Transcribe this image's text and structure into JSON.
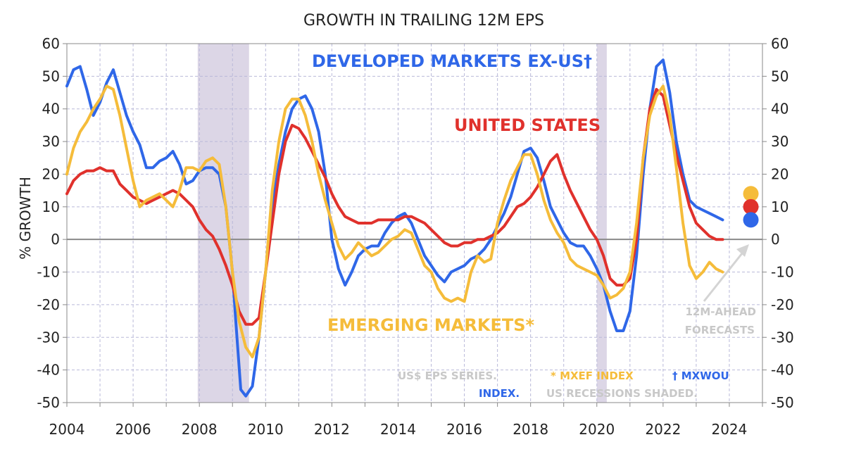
{
  "chart_data": {
    "type": "line",
    "title": "GROWTH IN TRAILING 12M EPS",
    "ylabel": "% GROWTH",
    "xlim": [
      2004,
      2025
    ],
    "ylim": [
      -50,
      60
    ],
    "x_ticks": [
      "2004",
      "2006",
      "2008",
      "2010",
      "2012",
      "2014",
      "2016",
      "2018",
      "2020",
      "2022",
      "2024"
    ],
    "y_ticks": [
      "60",
      "50",
      "40",
      "30",
      "20",
      "10",
      "0",
      "-10",
      "-20",
      "-30",
      "-40",
      "-50"
    ],
    "grid": true,
    "recessions": [
      [
        2007.95,
        2009.5
      ],
      [
        2020.0,
        2020.3
      ]
    ],
    "series": [
      {
        "name": "DEVELOPED MARKETS EX-US†",
        "color": "#2f67e8",
        "points": [
          [
            2004.0,
            47
          ],
          [
            2004.2,
            52
          ],
          [
            2004.4,
            53
          ],
          [
            2004.6,
            46
          ],
          [
            2004.8,
            38
          ],
          [
            2005.0,
            42
          ],
          [
            2005.2,
            48
          ],
          [
            2005.4,
            52
          ],
          [
            2005.6,
            45
          ],
          [
            2005.8,
            38
          ],
          [
            2006.0,
            33
          ],
          [
            2006.2,
            29
          ],
          [
            2006.4,
            22
          ],
          [
            2006.6,
            22
          ],
          [
            2006.8,
            24
          ],
          [
            2007.0,
            25
          ],
          [
            2007.2,
            27
          ],
          [
            2007.4,
            23
          ],
          [
            2007.6,
            17
          ],
          [
            2007.8,
            18
          ],
          [
            2008.0,
            21
          ],
          [
            2008.2,
            22
          ],
          [
            2008.4,
            22
          ],
          [
            2008.6,
            20
          ],
          [
            2008.8,
            10
          ],
          [
            2009.0,
            -10
          ],
          [
            2009.1,
            -25
          ],
          [
            2009.25,
            -46
          ],
          [
            2009.4,
            -48
          ],
          [
            2009.6,
            -45
          ],
          [
            2009.8,
            -30
          ],
          [
            2010.0,
            -10
          ],
          [
            2010.2,
            10
          ],
          [
            2010.4,
            23
          ],
          [
            2010.6,
            33
          ],
          [
            2010.8,
            40
          ],
          [
            2011.0,
            43
          ],
          [
            2011.2,
            44
          ],
          [
            2011.4,
            40
          ],
          [
            2011.6,
            33
          ],
          [
            2011.8,
            20
          ],
          [
            2012.0,
            0
          ],
          [
            2012.2,
            -9
          ],
          [
            2012.4,
            -14
          ],
          [
            2012.6,
            -10
          ],
          [
            2012.8,
            -5
          ],
          [
            2013.0,
            -3
          ],
          [
            2013.2,
            -2
          ],
          [
            2013.4,
            -2
          ],
          [
            2013.6,
            2
          ],
          [
            2013.8,
            5
          ],
          [
            2014.0,
            7
          ],
          [
            2014.2,
            8
          ],
          [
            2014.4,
            5
          ],
          [
            2014.6,
            0
          ],
          [
            2014.8,
            -5
          ],
          [
            2015.0,
            -8
          ],
          [
            2015.2,
            -11
          ],
          [
            2015.4,
            -13
          ],
          [
            2015.6,
            -10
          ],
          [
            2015.8,
            -9
          ],
          [
            2016.0,
            -8
          ],
          [
            2016.2,
            -6
          ],
          [
            2016.4,
            -5
          ],
          [
            2016.6,
            -3
          ],
          [
            2016.8,
            0
          ],
          [
            2017.0,
            4
          ],
          [
            2017.2,
            8
          ],
          [
            2017.4,
            13
          ],
          [
            2017.6,
            20
          ],
          [
            2017.8,
            27
          ],
          [
            2018.0,
            28
          ],
          [
            2018.2,
            25
          ],
          [
            2018.4,
            18
          ],
          [
            2018.6,
            10
          ],
          [
            2018.8,
            6
          ],
          [
            2019.0,
            2
          ],
          [
            2019.2,
            -1
          ],
          [
            2019.4,
            -2
          ],
          [
            2019.6,
            -2
          ],
          [
            2019.8,
            -5
          ],
          [
            2020.0,
            -9
          ],
          [
            2020.2,
            -14
          ],
          [
            2020.4,
            -22
          ],
          [
            2020.6,
            -28
          ],
          [
            2020.8,
            -28
          ],
          [
            2021.0,
            -22
          ],
          [
            2021.2,
            -5
          ],
          [
            2021.4,
            20
          ],
          [
            2021.6,
            40
          ],
          [
            2021.8,
            53
          ],
          [
            2022.0,
            55
          ],
          [
            2022.2,
            45
          ],
          [
            2022.4,
            30
          ],
          [
            2022.6,
            20
          ],
          [
            2022.8,
            12
          ],
          [
            2023.0,
            10
          ],
          [
            2023.2,
            9
          ],
          [
            2023.4,
            8
          ],
          [
            2023.6,
            7
          ],
          [
            2023.8,
            6
          ]
        ]
      },
      {
        "name": "UNITED STATES",
        "color": "#e0312c",
        "points": [
          [
            2004.0,
            14
          ],
          [
            2004.2,
            18
          ],
          [
            2004.4,
            20
          ],
          [
            2004.6,
            21
          ],
          [
            2004.8,
            21
          ],
          [
            2005.0,
            22
          ],
          [
            2005.2,
            21
          ],
          [
            2005.4,
            21
          ],
          [
            2005.6,
            17
          ],
          [
            2005.8,
            15
          ],
          [
            2006.0,
            13
          ],
          [
            2006.2,
            12
          ],
          [
            2006.4,
            11
          ],
          [
            2006.6,
            12
          ],
          [
            2006.8,
            13
          ],
          [
            2007.0,
            14
          ],
          [
            2007.2,
            15
          ],
          [
            2007.4,
            14
          ],
          [
            2007.6,
            12
          ],
          [
            2007.8,
            10
          ],
          [
            2008.0,
            6
          ],
          [
            2008.2,
            3
          ],
          [
            2008.4,
            1
          ],
          [
            2008.6,
            -3
          ],
          [
            2008.8,
            -8
          ],
          [
            2009.0,
            -14
          ],
          [
            2009.2,
            -22
          ],
          [
            2009.4,
            -26
          ],
          [
            2009.6,
            -26
          ],
          [
            2009.8,
            -24
          ],
          [
            2010.0,
            -10
          ],
          [
            2010.2,
            5
          ],
          [
            2010.4,
            20
          ],
          [
            2010.6,
            30
          ],
          [
            2010.8,
            35
          ],
          [
            2011.0,
            34
          ],
          [
            2011.2,
            31
          ],
          [
            2011.4,
            27
          ],
          [
            2011.6,
            23
          ],
          [
            2011.8,
            19
          ],
          [
            2012.0,
            14
          ],
          [
            2012.2,
            10
          ],
          [
            2012.4,
            7
          ],
          [
            2012.6,
            6
          ],
          [
            2012.8,
            5
          ],
          [
            2013.0,
            5
          ],
          [
            2013.2,
            5
          ],
          [
            2013.4,
            6
          ],
          [
            2013.6,
            6
          ],
          [
            2013.8,
            6
          ],
          [
            2014.0,
            6
          ],
          [
            2014.2,
            7
          ],
          [
            2014.4,
            7
          ],
          [
            2014.6,
            6
          ],
          [
            2014.8,
            5
          ],
          [
            2015.0,
            3
          ],
          [
            2015.2,
            1
          ],
          [
            2015.4,
            -1
          ],
          [
            2015.6,
            -2
          ],
          [
            2015.8,
            -2
          ],
          [
            2016.0,
            -1
          ],
          [
            2016.2,
            -1
          ],
          [
            2016.4,
            0
          ],
          [
            2016.6,
            0
          ],
          [
            2016.8,
            1
          ],
          [
            2017.0,
            2
          ],
          [
            2017.2,
            4
          ],
          [
            2017.4,
            7
          ],
          [
            2017.6,
            10
          ],
          [
            2017.8,
            11
          ],
          [
            2018.0,
            13
          ],
          [
            2018.2,
            16
          ],
          [
            2018.4,
            20
          ],
          [
            2018.6,
            24
          ],
          [
            2018.8,
            26
          ],
          [
            2019.0,
            20
          ],
          [
            2019.2,
            15
          ],
          [
            2019.4,
            11
          ],
          [
            2019.6,
            7
          ],
          [
            2019.8,
            3
          ],
          [
            2020.0,
            0
          ],
          [
            2020.2,
            -5
          ],
          [
            2020.4,
            -12
          ],
          [
            2020.6,
            -14
          ],
          [
            2020.8,
            -14
          ],
          [
            2021.0,
            -12
          ],
          [
            2021.2,
            0
          ],
          [
            2021.4,
            25
          ],
          [
            2021.6,
            40
          ],
          [
            2021.8,
            46
          ],
          [
            2022.0,
            44
          ],
          [
            2022.2,
            35
          ],
          [
            2022.4,
            26
          ],
          [
            2022.6,
            18
          ],
          [
            2022.8,
            10
          ],
          [
            2023.0,
            5
          ],
          [
            2023.2,
            3
          ],
          [
            2023.4,
            1
          ],
          [
            2023.6,
            0
          ],
          [
            2023.8,
            0
          ]
        ]
      },
      {
        "name": "EMERGING MARKETS*",
        "color": "#f5bc3a",
        "points": [
          [
            2004.0,
            20
          ],
          [
            2004.2,
            28
          ],
          [
            2004.4,
            33
          ],
          [
            2004.6,
            36
          ],
          [
            2004.8,
            40
          ],
          [
            2005.0,
            43
          ],
          [
            2005.2,
            47
          ],
          [
            2005.4,
            46
          ],
          [
            2005.6,
            38
          ],
          [
            2005.8,
            28
          ],
          [
            2006.0,
            18
          ],
          [
            2006.2,
            10
          ],
          [
            2006.4,
            12
          ],
          [
            2006.6,
            13
          ],
          [
            2006.8,
            14
          ],
          [
            2007.0,
            12
          ],
          [
            2007.2,
            10
          ],
          [
            2007.4,
            15
          ],
          [
            2007.6,
            22
          ],
          [
            2007.8,
            22
          ],
          [
            2008.0,
            21
          ],
          [
            2008.2,
            24
          ],
          [
            2008.4,
            25
          ],
          [
            2008.6,
            23
          ],
          [
            2008.8,
            10
          ],
          [
            2009.0,
            -10
          ],
          [
            2009.2,
            -25
          ],
          [
            2009.4,
            -33
          ],
          [
            2009.6,
            -36
          ],
          [
            2009.8,
            -30
          ],
          [
            2010.0,
            -10
          ],
          [
            2010.2,
            15
          ],
          [
            2010.4,
            30
          ],
          [
            2010.6,
            40
          ],
          [
            2010.8,
            43
          ],
          [
            2011.0,
            43
          ],
          [
            2011.2,
            38
          ],
          [
            2011.4,
            30
          ],
          [
            2011.6,
            20
          ],
          [
            2011.8,
            12
          ],
          [
            2012.0,
            5
          ],
          [
            2012.2,
            -2
          ],
          [
            2012.4,
            -6
          ],
          [
            2012.6,
            -4
          ],
          [
            2012.8,
            -1
          ],
          [
            2013.0,
            -3
          ],
          [
            2013.2,
            -5
          ],
          [
            2013.4,
            -4
          ],
          [
            2013.6,
            -2
          ],
          [
            2013.8,
            0
          ],
          [
            2014.0,
            1
          ],
          [
            2014.2,
            3
          ],
          [
            2014.4,
            2
          ],
          [
            2014.6,
            -3
          ],
          [
            2014.8,
            -8
          ],
          [
            2015.0,
            -10
          ],
          [
            2015.2,
            -15
          ],
          [
            2015.4,
            -18
          ],
          [
            2015.6,
            -19
          ],
          [
            2015.8,
            -18
          ],
          [
            2016.0,
            -19
          ],
          [
            2016.2,
            -10
          ],
          [
            2016.4,
            -5
          ],
          [
            2016.6,
            -7
          ],
          [
            2016.8,
            -6
          ],
          [
            2017.0,
            5
          ],
          [
            2017.2,
            12
          ],
          [
            2017.4,
            18
          ],
          [
            2017.6,
            22
          ],
          [
            2017.8,
            26
          ],
          [
            2018.0,
            26
          ],
          [
            2018.2,
            20
          ],
          [
            2018.4,
            12
          ],
          [
            2018.6,
            6
          ],
          [
            2018.8,
            2
          ],
          [
            2019.0,
            -1
          ],
          [
            2019.2,
            -6
          ],
          [
            2019.4,
            -8
          ],
          [
            2019.6,
            -9
          ],
          [
            2019.8,
            -10
          ],
          [
            2020.0,
            -11
          ],
          [
            2020.2,
            -14
          ],
          [
            2020.4,
            -18
          ],
          [
            2020.6,
            -17
          ],
          [
            2020.8,
            -15
          ],
          [
            2021.0,
            -10
          ],
          [
            2021.2,
            5
          ],
          [
            2021.4,
            25
          ],
          [
            2021.6,
            38
          ],
          [
            2021.8,
            44
          ],
          [
            2022.0,
            47
          ],
          [
            2022.2,
            38
          ],
          [
            2022.4,
            22
          ],
          [
            2022.6,
            5
          ],
          [
            2022.8,
            -8
          ],
          [
            2023.0,
            -12
          ],
          [
            2023.2,
            -10
          ],
          [
            2023.4,
            -7
          ],
          [
            2023.6,
            -9
          ],
          [
            2023.8,
            -10
          ]
        ]
      }
    ],
    "forecast_points": [
      {
        "color": "#f5bc3a",
        "x": 2024.65,
        "y": 14
      },
      {
        "color": "#e0312c",
        "x": 2024.65,
        "y": 10
      },
      {
        "color": "#2f67e8",
        "x": 2024.65,
        "y": 6
      }
    ],
    "labels": {
      "developed": "DEVELOPED MARKETS EX-US†",
      "us": "UNITED STATES",
      "emerging": "EMERGING MARKETS*",
      "forecast_line1": "12M-AHEAD",
      "forecast_line2": "FORECASTS",
      "note_part1": "US$ EPS SERIES.",
      "note_part2": "* MXEF INDEX",
      "note_part3": "† MXWOU",
      "note_part4": "INDEX.",
      "note_part5": "US RECESSIONS SHADED."
    },
    "colors": {
      "developed": "#2f67e8",
      "us": "#e0312c",
      "emerging": "#f5bc3a",
      "recession": "#dcd6e6",
      "note_gray": "#c8c8c8"
    }
  }
}
